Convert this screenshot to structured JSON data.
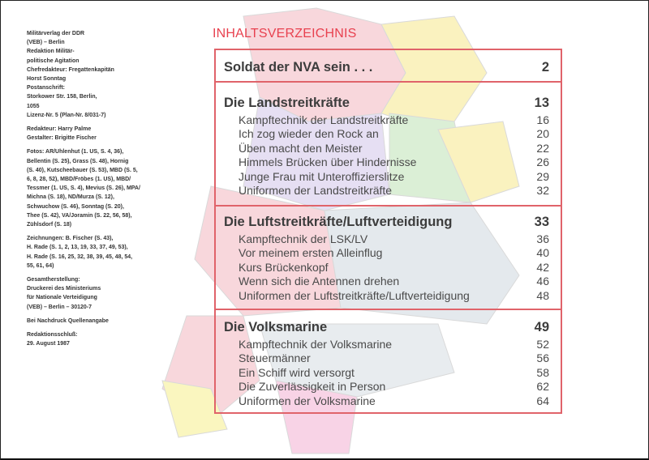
{
  "imprint": [
    [
      "Militärverlag der DDR",
      "(VEB) – Berlin",
      "Redaktion Militär-",
      "politische Agitation",
      "Chefredakteur: Fregattenkapitän",
      "Horst Sonntag",
      "Postanschrift:",
      "Storkower Str. 158, Berlin,",
      "1055",
      "Lizenz-Nr. 5 (Plan-Nr. 8/031-7)"
    ],
    [
      "Redakteur: Harry Palme",
      "Gestalter: Brigitte Fischer"
    ],
    [
      "Fotos: AR/Uhlenhut (1. US, S. 4, 36),",
      "Bellentin (S. 25), Grass (S. 48), Hornig",
      "(S. 40), Kutscheebauer (S. 53), MBD (S. 5,",
      "6, 8, 28, 52), MBD/Fröbes (1. US), MBD/",
      "Tessmer (1. US, S. 4), Mevius (S. 26), MPA/",
      "Michna (S. 18), ND/Murza (S. 12),",
      "Schwuchow (S. 46), Sonntag (S. 20),",
      "Thee (S. 42), VA/Joramin (S. 22, 56, 58),",
      "Zühlsdorf (S. 18)"
    ],
    [
      "Zeichnungen: B. Fischer (S. 43),",
      "H. Rade (S. 1, 2, 13, 19, 33, 37, 49, 53),",
      "H. Rade (S. 16, 25, 32, 38, 39, 45, 48, 54,",
      "55, 61, 64)"
    ],
    [
      "Gesamtherstellung:",
      "Druckerei des Ministeriums",
      "für Nationale Verteidigung",
      "(VEB) – Berlin – 30120-7"
    ],
    [
      "Bei Nachdruck Quellenangabe"
    ],
    [
      "Redaktionsschluß:",
      "29. August 1987"
    ]
  ],
  "toc": {
    "title": "INHALTSVERZEICHNIS",
    "accent_color": "#e8414f",
    "sections": [
      {
        "title": "Soldat der NVA sein . . .",
        "page": "2",
        "items": []
      },
      {
        "title": "Die Landstreitkräfte",
        "page": "13",
        "items": [
          {
            "title": "Kampftechnik der Landstreitkräfte",
            "page": "16"
          },
          {
            "title": "Ich zog wieder den Rock an",
            "page": "20"
          },
          {
            "title": "Üben macht den Meister",
            "page": "22"
          },
          {
            "title": "Himmels Brücken über Hindernisse",
            "page": "26"
          },
          {
            "title": "Junge Frau mit Unteroffizierslitze",
            "page": "29"
          },
          {
            "title": "Uniformen der Landstreitkräfte",
            "page": "32"
          }
        ]
      },
      {
        "title": "Die Luftstreitkräfte/Luftverteidigung",
        "page": "33",
        "items": [
          {
            "title": "Kampftechnik der LSK/LV",
            "page": "36"
          },
          {
            "title": "Vor meinem ersten Alleinflug",
            "page": "40"
          },
          {
            "title": "Kurs Brückenkopf",
            "page": "42"
          },
          {
            "title": "Wenn sich die Antennen drehen",
            "page": "46"
          },
          {
            "title": "Uniformen der Luftstreitkräfte/Luftverteidigung",
            "page": "48"
          }
        ]
      },
      {
        "title": "Die Volksmarine",
        "page": "49",
        "items": [
          {
            "title": "Kampftechnik der Volksmarine",
            "page": "52"
          },
          {
            "title": "Steuermänner",
            "page": "56"
          },
          {
            "title": "Ein Schiff wird versorgt",
            "page": "58"
          },
          {
            "title": "Die Zuverlässigkeit in Person",
            "page": "62"
          },
          {
            "title": "Uniformen der Volksmarine",
            "page": "64"
          }
        ]
      }
    ]
  }
}
